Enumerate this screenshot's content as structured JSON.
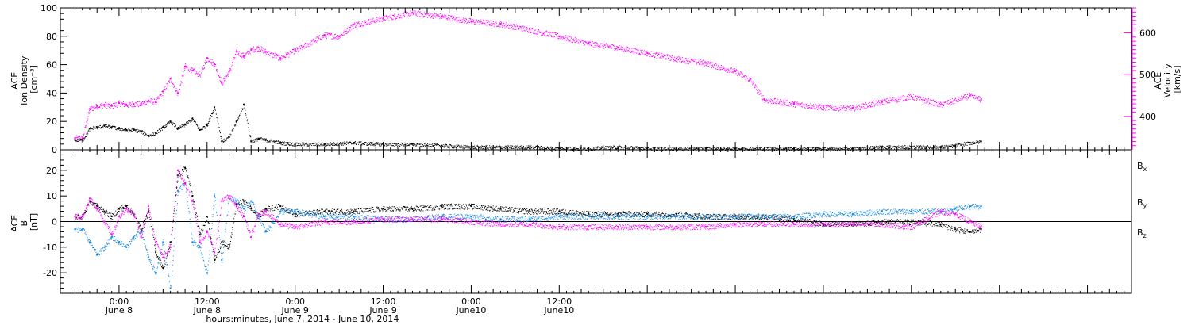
{
  "chart_data": [
    {
      "type": "scatter",
      "panel": "top",
      "ylabel_left": [
        "ACE",
        "Ion Density",
        "[cm⁻³]"
      ],
      "ylabel_right": [
        "ACE",
        "Velocity",
        "[km/s]"
      ],
      "ylim_left": [
        0,
        100
      ],
      "ylim_right": [
        320,
        660
      ],
      "yticks_left": [
        "0",
        "20",
        "40",
        "60",
        "80",
        "100"
      ],
      "yticks_right": [
        "400",
        "500",
        "600"
      ],
      "colors": {
        "density": "#000000",
        "velocity": "#ff00ff"
      },
      "series": [
        {
          "key": "density",
          "x": [
            -6,
            -5,
            -4,
            -3,
            -2,
            -1,
            0,
            1,
            2,
            3,
            4,
            5,
            6,
            7,
            8,
            9,
            10,
            11,
            12,
            13,
            14,
            15,
            16,
            17,
            18,
            19,
            20,
            22,
            24,
            28,
            32,
            36,
            40,
            44,
            48,
            52,
            56,
            60,
            64,
            68,
            72,
            76,
            80,
            84,
            88,
            92,
            96,
            100,
            104,
            108,
            110,
            112,
            114,
            116,
            117.5
          ],
          "y": [
            7,
            7,
            15,
            16,
            17,
            16,
            15,
            14,
            14,
            13,
            10,
            12,
            16,
            20,
            15,
            18,
            22,
            14,
            18,
            30,
            6,
            9,
            20,
            32,
            6,
            8,
            7,
            5,
            4,
            4,
            5,
            4,
            4,
            3,
            2,
            2,
            2,
            1,
            1,
            2,
            1,
            1,
            1,
            1,
            1,
            1,
            1,
            1,
            2,
            2,
            2,
            2,
            3,
            5,
            6
          ]
        },
        {
          "key": "velocity",
          "x": [
            -6,
            -5,
            -4,
            -3,
            -2,
            -1,
            0,
            1,
            2,
            3,
            4,
            5,
            6,
            7,
            8,
            9,
            10,
            11,
            12,
            13,
            14,
            15,
            16,
            17,
            18,
            19,
            20,
            22,
            24,
            28,
            30,
            32,
            36,
            40,
            44,
            48,
            52,
            56,
            60,
            64,
            68,
            72,
            76,
            80,
            84,
            86,
            88,
            92,
            96,
            100,
            104,
            108,
            112,
            116,
            117.5
          ],
          "y": [
            348,
            348,
            418,
            425,
            428,
            425,
            432,
            428,
            430,
            430,
            438,
            435,
            460,
            490,
            455,
            520,
            510,
            500,
            540,
            525,
            480,
            508,
            555,
            545,
            560,
            565,
            555,
            540,
            558,
            595,
            592,
            620,
            635,
            648,
            640,
            628,
            622,
            608,
            592,
            575,
            565,
            552,
            538,
            528,
            508,
            488,
            440,
            430,
            422,
            420,
            435,
            448,
            428,
            450,
            440
          ]
        }
      ]
    },
    {
      "type": "scatter",
      "panel": "bottom",
      "ylabel_left": [
        "ACE",
        "B",
        "[nT]"
      ],
      "ylim": [
        -28,
        28
      ],
      "yticks": [
        "-20",
        "-10",
        "0",
        "10",
        "20"
      ],
      "legend": [
        {
          "key": "bx",
          "label": "B",
          "sub": "x",
          "color": "#000000"
        },
        {
          "key": "by",
          "label": "B",
          "sub": "y",
          "color": "#1a8be0"
        },
        {
          "key": "bz",
          "label": "B",
          "sub": "z",
          "color": "#ff00ff"
        }
      ],
      "series": [
        {
          "key": "bx",
          "x": [
            -6,
            -5,
            -4,
            -3,
            -2,
            -1,
            0,
            1,
            2,
            3,
            4,
            5,
            6,
            7,
            8,
            9,
            10,
            11,
            12,
            13,
            14,
            15,
            16,
            17,
            18,
            19,
            20,
            22,
            24,
            28,
            32,
            36,
            40,
            44,
            48,
            52,
            56,
            60,
            64,
            68,
            72,
            76,
            80,
            84,
            88,
            92,
            96,
            100,
            104,
            108,
            112,
            114,
            116,
            117.5
          ],
          "y": [
            2,
            2,
            8,
            6,
            4,
            2,
            5,
            6,
            3,
            -3,
            4,
            -12,
            -18,
            -8,
            18,
            21,
            10,
            -5,
            2,
            -15,
            -8,
            -10,
            7,
            8,
            5,
            2,
            5,
            6,
            3,
            4,
            4,
            5,
            5,
            6,
            6,
            5,
            4,
            4,
            3,
            3,
            3,
            3,
            2,
            2,
            2,
            1,
            -1,
            -1,
            0,
            0,
            -1,
            -3,
            -4,
            -3
          ]
        },
        {
          "key": "by",
          "x": [
            -6,
            -5,
            -4,
            -3,
            -2,
            -1,
            0,
            1,
            2,
            3,
            4,
            5,
            6,
            7,
            8,
            9,
            10,
            11,
            12,
            13,
            14,
            15,
            16,
            17,
            18,
            19,
            20,
            22,
            24,
            28,
            32,
            36,
            40,
            44,
            48,
            52,
            56,
            60,
            64,
            68,
            72,
            76,
            80,
            84,
            88,
            92,
            96,
            100,
            104,
            108,
            112,
            114,
            116,
            117.5
          ],
          "y": [
            -3,
            -3,
            -8,
            -13,
            -10,
            -6,
            -8,
            -10,
            -6,
            -4,
            -14,
            -20,
            -8,
            -26,
            12,
            15,
            -8,
            -10,
            -20,
            10,
            -15,
            10,
            8,
            5,
            8,
            2,
            -4,
            4,
            4,
            2,
            2,
            1,
            1,
            2,
            2,
            1,
            1,
            2,
            2,
            2,
            2,
            2,
            2,
            2,
            2,
            2,
            3,
            3,
            4,
            4,
            4,
            5,
            6,
            6
          ]
        },
        {
          "key": "bz",
          "x": [
            -6,
            -5,
            -4,
            -3,
            -2,
            -1,
            0,
            1,
            2,
            3,
            4,
            5,
            6,
            7,
            8,
            9,
            10,
            11,
            12,
            13,
            14,
            15,
            16,
            17,
            18,
            19,
            20,
            22,
            24,
            28,
            32,
            36,
            40,
            44,
            48,
            52,
            56,
            60,
            64,
            68,
            72,
            76,
            80,
            84,
            88,
            92,
            96,
            100,
            104,
            108,
            112,
            114,
            116,
            117.5
          ],
          "y": [
            2,
            2,
            9,
            5,
            0,
            -5,
            2,
            5,
            3,
            -6,
            6,
            -8,
            -14,
            -10,
            20,
            15,
            8,
            -8,
            -4,
            -12,
            8,
            10,
            6,
            2,
            -6,
            3,
            4,
            -1,
            -2,
            0,
            0,
            1,
            1,
            1,
            0,
            -1,
            -1,
            -2,
            -2,
            -2,
            -2,
            -2,
            -2,
            -1,
            -1,
            -1,
            -1,
            -1,
            -1,
            -2,
            4,
            3,
            0,
            -2
          ]
        }
      ]
    }
  ],
  "xaxis": {
    "xlim": [
      -8,
      138
    ],
    "ticks": [
      {
        "x": 0,
        "time": "0:00",
        "date": "June 8"
      },
      {
        "x": 12,
        "time": "12:00",
        "date": "June 8"
      },
      {
        "x": 24,
        "time": "0:00",
        "date": "June 9"
      },
      {
        "x": 36,
        "time": "12:00",
        "date": "June 9"
      },
      {
        "x": 48,
        "time": "0:00",
        "date": "June10"
      },
      {
        "x": 60,
        "time": "12:00",
        "date": "June10"
      }
    ],
    "title": "hours:minutes, June  7, 2014 - June 10, 2014"
  }
}
